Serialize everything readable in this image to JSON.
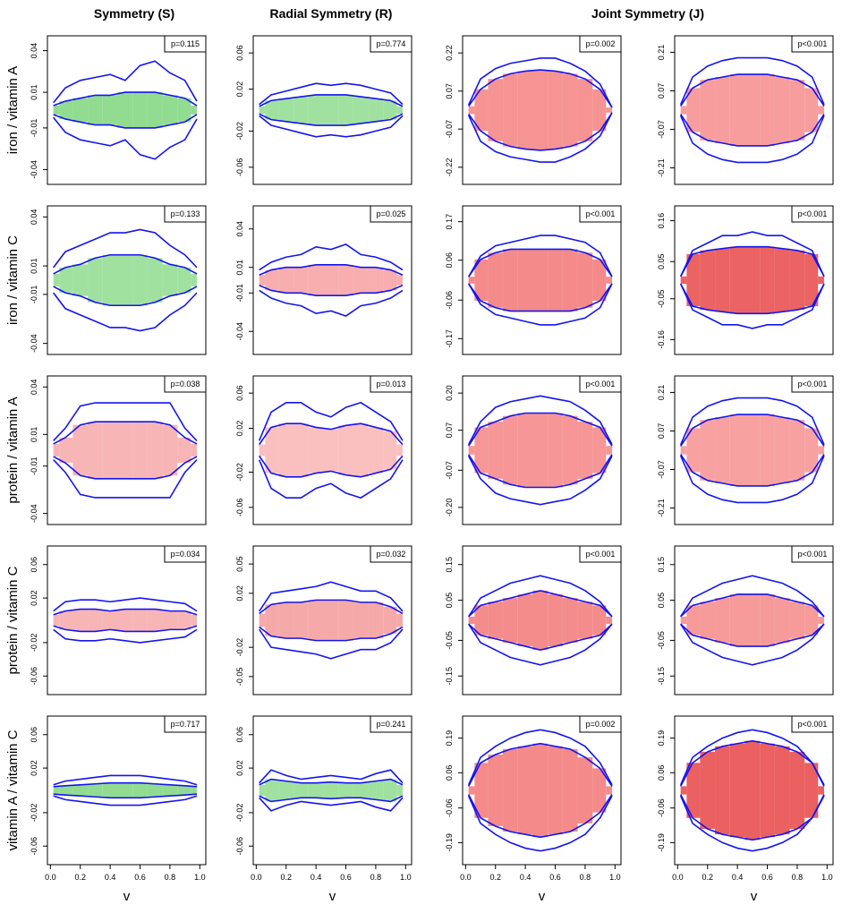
{
  "header": {
    "columns": [
      "Symmetry (S)",
      "Radial Symmetry (R)",
      "Joint Symmetry (J)"
    ]
  },
  "chart_data": [
    {
      "type": "envelope",
      "ylabel": "iron / vitamin A",
      "p_label": "p=0.115",
      "color": "#7fd67f",
      "xlim": [
        -0.02,
        1.04
      ],
      "ylim": [
        -0.05,
        0.05
      ],
      "yticks": [
        0.04,
        {
          "value": 0.012,
          "label": "0.01"
        },
        {
          "value": -0.012,
          "label": "-0.01"
        },
        -0.04
      ],
      "x": [
        0.02,
        0.1,
        0.2,
        0.3,
        0.4,
        0.5,
        0.6,
        0.7,
        0.8,
        0.9,
        0.98
      ],
      "outer": [
        0.005,
        0.015,
        0.02,
        0.022,
        0.024,
        0.02,
        0.03,
        0.033,
        0.025,
        0.02,
        0.006
      ],
      "inner": [
        0.003,
        0.006,
        0.008,
        0.01,
        0.01,
        0.012,
        0.012,
        0.012,
        0.01,
        0.008,
        0.003
      ]
    },
    {
      "type": "envelope",
      "p_label": "p=0.774",
      "color": "#8fdc8f",
      "xlim": [
        -0.02,
        1.04
      ],
      "ylim": [
        -0.078,
        0.078
      ],
      "yticks": [
        0.06,
        {
          "value": 0.022,
          "label": "0.02"
        },
        {
          "value": -0.022,
          "label": "-0.02"
        },
        -0.06
      ],
      "x": [
        0.02,
        0.1,
        0.2,
        0.3,
        0.4,
        0.5,
        0.6,
        0.7,
        0.8,
        0.9,
        0.98
      ],
      "outer": [
        0.006,
        0.016,
        0.02,
        0.024,
        0.028,
        0.026,
        0.028,
        0.026,
        0.022,
        0.018,
        0.006
      ],
      "inner": [
        0.004,
        0.01,
        0.012,
        0.014,
        0.016,
        0.016,
        0.016,
        0.014,
        0.012,
        0.01,
        0.004
      ]
    },
    {
      "type": "envelope",
      "p_label": "p=0.002",
      "color": "#f48080",
      "xlim": [
        -0.02,
        1.04
      ],
      "ylim": [
        -0.286,
        0.286
      ],
      "yticks": [
        0.22,
        {
          "value": 0.073,
          "label": "0.07"
        },
        {
          "value": -0.073,
          "label": "-0.07"
        },
        -0.22
      ],
      "x": [
        0.02,
        0.1,
        0.2,
        0.3,
        0.4,
        0.5,
        0.6,
        0.7,
        0.8,
        0.9,
        0.98
      ],
      "outer": [
        0.02,
        0.12,
        0.16,
        0.18,
        0.19,
        0.2,
        0.2,
        0.18,
        0.15,
        0.1,
        0.01
      ],
      "inner": [
        0.015,
        0.08,
        0.12,
        0.14,
        0.15,
        0.155,
        0.15,
        0.14,
        0.12,
        0.08,
        0.01
      ]
    },
    {
      "type": "envelope",
      "p_label": "p<0.001",
      "color": "#f68c8c",
      "xlim": [
        -0.02,
        1.04
      ],
      "ylim": [
        -0.27,
        0.27
      ],
      "yticks": [
        0.21,
        0.07,
        -0.07,
        -0.21
      ],
      "x": [
        0.02,
        0.1,
        0.2,
        0.3,
        0.4,
        0.5,
        0.6,
        0.7,
        0.8,
        0.9,
        0.98
      ],
      "outer": [
        0.02,
        0.12,
        0.16,
        0.18,
        0.19,
        0.19,
        0.19,
        0.18,
        0.16,
        0.12,
        0.02
      ],
      "inner": [
        0.015,
        0.08,
        0.11,
        0.12,
        0.13,
        0.13,
        0.13,
        0.12,
        0.11,
        0.08,
        0.015
      ]
    },
    {
      "type": "envelope",
      "ylabel": "iron / vitamin C",
      "p_label": "p=0.133",
      "color": "#8fdc8f",
      "xlim": [
        -0.02,
        1.04
      ],
      "ylim": [
        -0.047,
        0.047
      ],
      "yticks": [
        0.04,
        {
          "value": 0.009,
          "label": "0.01"
        },
        {
          "value": -0.009,
          "label": "-0.01"
        },
        -0.04
      ],
      "x": [
        0.02,
        0.1,
        0.2,
        0.3,
        0.4,
        0.5,
        0.6,
        0.7,
        0.8,
        0.9,
        0.98
      ],
      "outer": [
        0.008,
        0.018,
        0.022,
        0.026,
        0.03,
        0.03,
        0.032,
        0.03,
        0.022,
        0.016,
        0.008
      ],
      "inner": [
        0.004,
        0.008,
        0.01,
        0.014,
        0.016,
        0.016,
        0.016,
        0.014,
        0.01,
        0.008,
        0.004
      ]
    },
    {
      "type": "envelope",
      "p_label": "p=0.025",
      "color": "#f7a0a0",
      "xlim": [
        -0.02,
        1.04
      ],
      "ylim": [
        -0.058,
        0.058
      ],
      "yticks": [
        0.04,
        0.01,
        -0.01,
        -0.04
      ],
      "x": [
        0.02,
        0.1,
        0.2,
        0.3,
        0.4,
        0.5,
        0.6,
        0.7,
        0.8,
        0.9,
        0.98
      ],
      "outer": [
        0.008,
        0.014,
        0.018,
        0.02,
        0.026,
        0.024,
        0.028,
        0.02,
        0.018,
        0.014,
        0.008
      ],
      "inner": [
        0.004,
        0.008,
        0.01,
        0.01,
        0.012,
        0.012,
        0.012,
        0.01,
        0.01,
        0.008,
        0.004
      ]
    },
    {
      "type": "envelope",
      "p_label": "p<0.001",
      "color": "#f27575",
      "xlim": [
        -0.02,
        1.04
      ],
      "ylim": [
        -0.216,
        0.216
      ],
      "yticks": [
        0.17,
        {
          "value": 0.058,
          "label": "0.06"
        },
        {
          "value": -0.058,
          "label": "-0.06"
        },
        -0.17
      ],
      "x": [
        0.02,
        0.1,
        0.2,
        0.3,
        0.4,
        0.5,
        0.6,
        0.7,
        0.8,
        0.9,
        0.98
      ],
      "outer": [
        0.01,
        0.07,
        0.1,
        0.11,
        0.12,
        0.13,
        0.13,
        0.12,
        0.11,
        0.08,
        0.01
      ],
      "inner": [
        0.01,
        0.06,
        0.08,
        0.09,
        0.09,
        0.09,
        0.09,
        0.09,
        0.08,
        0.06,
        0.01
      ]
    },
    {
      "type": "envelope",
      "p_label": "p<0.001",
      "color": "#e84848",
      "xlim": [
        -0.02,
        1.04
      ],
      "ylim": [
        -0.2,
        0.2
      ],
      "yticks": [
        0.16,
        0.05,
        -0.05,
        -0.16
      ],
      "x": [
        0.02,
        0.1,
        0.2,
        0.3,
        0.4,
        0.5,
        0.6,
        0.7,
        0.8,
        0.9,
        0.98
      ],
      "outer": [
        0.01,
        0.08,
        0.1,
        0.12,
        0.12,
        0.13,
        0.12,
        0.12,
        0.1,
        0.08,
        0.01
      ],
      "inner": [
        0.01,
        0.07,
        0.08,
        0.085,
        0.09,
        0.09,
        0.09,
        0.085,
        0.08,
        0.07,
        0.01
      ]
    },
    {
      "type": "envelope",
      "ylabel": "protein / vitamin A",
      "p_label": "p=0.038",
      "color": "#f7a8a8",
      "xlim": [
        -0.02,
        1.04
      ],
      "ylim": [
        -0.047,
        0.047
      ],
      "yticks": [
        0.04,
        0.01,
        -0.01,
        -0.04
      ],
      "x": [
        0.02,
        0.1,
        0.2,
        0.3,
        0.4,
        0.5,
        0.6,
        0.7,
        0.8,
        0.9,
        0.98
      ],
      "outer": [
        0.006,
        0.014,
        0.028,
        0.03,
        0.03,
        0.03,
        0.03,
        0.03,
        0.03,
        0.014,
        0.006
      ],
      "inner": [
        0.004,
        0.008,
        0.016,
        0.018,
        0.018,
        0.018,
        0.018,
        0.018,
        0.016,
        0.008,
        0.004
      ]
    },
    {
      "type": "envelope",
      "p_label": "p=0.013",
      "color": "#f9b4b4",
      "xlim": [
        -0.02,
        1.04
      ],
      "ylim": [
        -0.078,
        0.078
      ],
      "yticks": [
        0.06,
        {
          "value": 0.023,
          "label": "0.02"
        },
        {
          "value": -0.023,
          "label": "-0.02"
        },
        -0.06
      ],
      "x": [
        0.02,
        0.1,
        0.2,
        0.3,
        0.4,
        0.5,
        0.6,
        0.7,
        0.8,
        0.9,
        0.98
      ],
      "outer": [
        0.01,
        0.04,
        0.05,
        0.05,
        0.04,
        0.035,
        0.045,
        0.05,
        0.04,
        0.03,
        0.01
      ],
      "inner": [
        0.006,
        0.024,
        0.028,
        0.028,
        0.024,
        0.022,
        0.026,
        0.028,
        0.024,
        0.02,
        0.006
      ]
    },
    {
      "type": "envelope",
      "p_label": "p<0.001",
      "color": "#f48484",
      "xlim": [
        -0.02,
        1.04
      ],
      "ylim": [
        -0.26,
        0.26
      ],
      "yticks": [
        {
          "value": 0.2,
          "label": "0.20"
        },
        0.07,
        -0.07,
        {
          "value": -0.2,
          "label": "-0.20"
        }
      ],
      "x": [
        0.02,
        0.1,
        0.2,
        0.3,
        0.4,
        0.5,
        0.6,
        0.7,
        0.8,
        0.9,
        0.98
      ],
      "outer": [
        0.02,
        0.1,
        0.15,
        0.17,
        0.18,
        0.19,
        0.18,
        0.17,
        0.14,
        0.1,
        0.02
      ],
      "inner": [
        0.015,
        0.08,
        0.1,
        0.12,
        0.13,
        0.13,
        0.13,
        0.12,
        0.1,
        0.08,
        0.015
      ]
    },
    {
      "type": "envelope",
      "p_label": "p<0.001",
      "color": "#f69090",
      "xlim": [
        -0.02,
        1.04
      ],
      "ylim": [
        -0.27,
        0.27
      ],
      "yticks": [
        0.21,
        0.07,
        -0.07,
        -0.21
      ],
      "x": [
        0.02,
        0.1,
        0.2,
        0.3,
        0.4,
        0.5,
        0.6,
        0.7,
        0.8,
        0.9,
        0.98
      ],
      "outer": [
        0.02,
        0.12,
        0.16,
        0.18,
        0.19,
        0.19,
        0.19,
        0.18,
        0.16,
        0.12,
        0.02
      ],
      "inner": [
        0.015,
        0.08,
        0.11,
        0.12,
        0.13,
        0.13,
        0.13,
        0.12,
        0.11,
        0.08,
        0.015
      ]
    },
    {
      "type": "envelope",
      "ylabel": "protein / vitamin C",
      "p_label": "p=0.034",
      "color": "#f7a8a8",
      "xlim": [
        -0.02,
        1.04
      ],
      "ylim": [
        -0.08,
        0.08
      ],
      "yticks": [
        0.06,
        {
          "value": 0.024,
          "label": "0.02"
        },
        {
          "value": -0.024,
          "label": "-0.02"
        },
        -0.06
      ],
      "x": [
        0.02,
        0.1,
        0.2,
        0.3,
        0.4,
        0.5,
        0.6,
        0.7,
        0.8,
        0.9,
        0.98
      ],
      "outer": [
        0.01,
        0.02,
        0.022,
        0.022,
        0.02,
        0.022,
        0.024,
        0.022,
        0.02,
        0.018,
        0.01
      ],
      "inner": [
        0.006,
        0.01,
        0.012,
        0.012,
        0.01,
        0.012,
        0.012,
        0.012,
        0.01,
        0.01,
        0.006
      ]
    },
    {
      "type": "envelope",
      "p_label": "p=0.032",
      "color": "#f59a9a",
      "xlim": [
        -0.02,
        1.04
      ],
      "ylim": [
        -0.066,
        0.066
      ],
      "yticks": [
        0.05,
        {
          "value": 0.024,
          "label": "0.02"
        },
        {
          "value": -0.024,
          "label": "-0.02"
        },
        -0.05
      ],
      "x": [
        0.02,
        0.1,
        0.2,
        0.3,
        0.4,
        0.5,
        0.6,
        0.7,
        0.8,
        0.9,
        0.98
      ],
      "outer": [
        0.008,
        0.024,
        0.026,
        0.028,
        0.03,
        0.034,
        0.03,
        0.026,
        0.026,
        0.02,
        0.008
      ],
      "inner": [
        0.006,
        0.014,
        0.016,
        0.016,
        0.018,
        0.018,
        0.018,
        0.016,
        0.016,
        0.012,
        0.006
      ]
    },
    {
      "type": "envelope",
      "p_label": "p<0.001",
      "color": "#f27878",
      "xlim": [
        -0.02,
        1.04
      ],
      "ylim": [
        -0.2,
        0.2
      ],
      "yticks": [
        0.15,
        {
          "value": 0.054,
          "label": "0.05"
        },
        {
          "value": -0.054,
          "label": "-0.05"
        },
        -0.15
      ],
      "x": [
        0.02,
        0.1,
        0.2,
        0.3,
        0.4,
        0.5,
        0.6,
        0.7,
        0.8,
        0.9,
        0.98
      ],
      "outer": [
        0.01,
        0.06,
        0.08,
        0.1,
        0.11,
        0.12,
        0.11,
        0.1,
        0.08,
        0.05,
        0.01
      ],
      "inner": [
        0.01,
        0.04,
        0.05,
        0.06,
        0.07,
        0.08,
        0.07,
        0.06,
        0.05,
        0.04,
        0.01
      ]
    },
    {
      "type": "envelope",
      "p_label": "p<0.001",
      "color": "#f48888",
      "xlim": [
        -0.02,
        1.04
      ],
      "ylim": [
        -0.2,
        0.2
      ],
      "yticks": [
        0.15,
        {
          "value": 0.054,
          "label": "0.05"
        },
        {
          "value": -0.054,
          "label": "-0.05"
        },
        -0.15
      ],
      "x": [
        0.02,
        0.1,
        0.2,
        0.3,
        0.4,
        0.5,
        0.6,
        0.7,
        0.8,
        0.9,
        0.98
      ],
      "outer": [
        0.01,
        0.06,
        0.08,
        0.1,
        0.11,
        0.12,
        0.11,
        0.1,
        0.08,
        0.05,
        0.01
      ],
      "inner": [
        0.01,
        0.04,
        0.05,
        0.06,
        0.07,
        0.07,
        0.07,
        0.06,
        0.05,
        0.04,
        0.01
      ]
    },
    {
      "type": "envelope",
      "ylabel": "vitamin A / vitamin C",
      "p_label": "p=0.717",
      "color": "#7fd67f",
      "xlim": [
        -0.02,
        1.04
      ],
      "ylim": [
        -0.08,
        0.08
      ],
      "yticks": [
        0.06,
        {
          "value": 0.024,
          "label": "0.02"
        },
        {
          "value": -0.024,
          "label": "-0.02"
        },
        -0.06
      ],
      "xticks": [
        {
          "value": 0,
          "label": "0.0"
        },
        0.2,
        0.4,
        0.6,
        0.8,
        {
          "value": 1,
          "label": "1.0"
        }
      ],
      "xlabel": "v",
      "x": [
        0.02,
        0.1,
        0.2,
        0.3,
        0.4,
        0.5,
        0.6,
        0.7,
        0.8,
        0.9,
        0.98
      ],
      "outer": [
        0.006,
        0.01,
        0.012,
        0.014,
        0.016,
        0.016,
        0.016,
        0.014,
        0.012,
        0.01,
        0.006
      ],
      "inner": [
        0.004,
        0.005,
        0.006,
        0.007,
        0.008,
        0.008,
        0.008,
        0.007,
        0.006,
        0.005,
        0.004
      ]
    },
    {
      "type": "envelope",
      "p_label": "p=0.241",
      "color": "#8fdc8f",
      "xlim": [
        -0.02,
        1.04
      ],
      "ylim": [
        -0.08,
        0.08
      ],
      "yticks": [
        0.06,
        {
          "value": 0.024,
          "label": "0.02"
        },
        {
          "value": -0.024,
          "label": "-0.02"
        },
        -0.06
      ],
      "xticks": [
        {
          "value": 0,
          "label": "0.0"
        },
        0.2,
        0.4,
        0.6,
        0.8,
        {
          "value": 1,
          "label": "1.0"
        }
      ],
      "xlabel": "v",
      "x": [
        0.02,
        0.1,
        0.2,
        0.3,
        0.4,
        0.5,
        0.6,
        0.7,
        0.8,
        0.9,
        0.98
      ],
      "outer": [
        0.008,
        0.022,
        0.016,
        0.012,
        0.014,
        0.016,
        0.014,
        0.012,
        0.018,
        0.022,
        0.008
      ],
      "inner": [
        0.006,
        0.012,
        0.01,
        0.008,
        0.008,
        0.009,
        0.008,
        0.008,
        0.01,
        0.012,
        0.006
      ]
    },
    {
      "type": "envelope",
      "p_label": "p=0.002",
      "color": "#f27575",
      "xlim": [
        -0.02,
        1.04
      ],
      "ylim": [
        -0.27,
        0.27
      ],
      "yticks": [
        0.19,
        {
          "value": 0.064,
          "label": "0.06"
        },
        {
          "value": -0.064,
          "label": "-0.06"
        },
        -0.19
      ],
      "xticks": [
        {
          "value": 0,
          "label": "0.0"
        },
        0.2,
        0.4,
        0.6,
        0.8,
        {
          "value": 1,
          "label": "1.0"
        }
      ],
      "xlabel": "v",
      "x": [
        0.02,
        0.1,
        0.2,
        0.3,
        0.4,
        0.5,
        0.6,
        0.7,
        0.8,
        0.9,
        0.98
      ],
      "outer": [
        0.02,
        0.12,
        0.16,
        0.19,
        0.21,
        0.22,
        0.21,
        0.19,
        0.16,
        0.1,
        0.02
      ],
      "inner": [
        0.015,
        0.1,
        0.13,
        0.15,
        0.16,
        0.17,
        0.16,
        0.15,
        0.12,
        0.08,
        0.015
      ]
    },
    {
      "type": "envelope",
      "p_label": "p<0.001",
      "color": "#e84444",
      "xlim": [
        -0.02,
        1.04
      ],
      "ylim": [
        -0.27,
        0.27
      ],
      "yticks": [
        0.19,
        {
          "value": 0.064,
          "label": "0.06"
        },
        {
          "value": -0.064,
          "label": "-0.06"
        },
        -0.19
      ],
      "xticks": [
        {
          "value": 0,
          "label": "0.0"
        },
        0.2,
        0.4,
        0.6,
        0.8,
        {
          "value": 1,
          "label": "1.0"
        }
      ],
      "xlabel": "v",
      "x": [
        0.02,
        0.1,
        0.2,
        0.3,
        0.4,
        0.5,
        0.6,
        0.7,
        0.8,
        0.9,
        0.98
      ],
      "outer": [
        0.02,
        0.12,
        0.16,
        0.19,
        0.21,
        0.22,
        0.21,
        0.19,
        0.16,
        0.1,
        0.02
      ],
      "inner": [
        0.015,
        0.1,
        0.14,
        0.16,
        0.17,
        0.18,
        0.17,
        0.16,
        0.14,
        0.1,
        0.015
      ]
    }
  ]
}
